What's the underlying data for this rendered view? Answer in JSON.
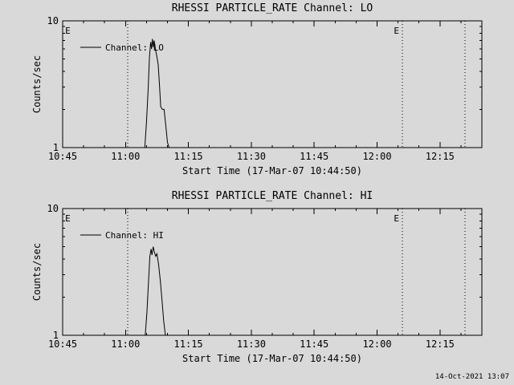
{
  "page": {
    "background_color": "#d9d9d9",
    "foreground_color": "#000000"
  },
  "footer": {
    "render_timestamp": "14-Oct-2021 13:07"
  },
  "chart_data": [
    {
      "type": "line",
      "title": "RHESSI PARTICLE_RATE Channel: LO",
      "xlabel": "Start Time (17-Mar-07 10:44:50)",
      "ylabel": "Counts/sec",
      "yscale": "log",
      "ylim": [
        1,
        10
      ],
      "y_ticks": [
        1,
        10
      ],
      "grid": false,
      "legend_position": "upper-left",
      "x_unit": "minutes since 10:45",
      "x_range": [
        0,
        100
      ],
      "x_major": 15,
      "x_minor": 5,
      "x_ticks": [
        {
          "t": 0,
          "label": "10:45"
        },
        {
          "t": 15,
          "label": "11:00"
        },
        {
          "t": 30,
          "label": "11:15"
        },
        {
          "t": 45,
          "label": "11:30"
        },
        {
          "t": 60,
          "label": "11:45"
        },
        {
          "t": 75,
          "label": "12:00"
        },
        {
          "t": 90,
          "label": "12:15"
        }
      ],
      "eclipse_lines": [
        15.5,
        81,
        96
      ],
      "eclipse_labels": [
        {
          "t": 0.6,
          "text": "E"
        },
        {
          "t": 79.0,
          "text": "E"
        }
      ],
      "series": [
        {
          "name": "Channel: LO",
          "x": [
            0,
            19.6,
            20.0,
            20.4,
            20.7,
            21.0,
            21.2,
            21.4,
            21.6,
            21.8,
            22.0,
            22.2,
            22.5,
            22.8,
            23.1,
            23.4,
            23.8,
            24.2,
            24.6,
            25.0,
            25.4,
            100
          ],
          "values": [
            1,
            1,
            1.6,
            2.9,
            5.2,
            6.8,
            6.0,
            7.2,
            6.2,
            7.0,
            6.5,
            5.8,
            5.2,
            4.5,
            3.1,
            2.1,
            2.0,
            2.0,
            1.5,
            1.1,
            1.0,
            1
          ]
        }
      ]
    },
    {
      "type": "line",
      "title": "RHESSI PARTICLE_RATE Channel: HI",
      "xlabel": "Start Time (17-Mar-07 10:44:50)",
      "ylabel": "Counts/sec",
      "yscale": "log",
      "ylim": [
        1,
        10
      ],
      "y_ticks": [
        1,
        10
      ],
      "grid": false,
      "legend_position": "upper-left",
      "x_unit": "minutes since 10:45",
      "x_range": [
        0,
        100
      ],
      "x_major": 15,
      "x_minor": 5,
      "x_ticks": [
        {
          "t": 0,
          "label": "10:45"
        },
        {
          "t": 15,
          "label": "11:00"
        },
        {
          "t": 30,
          "label": "11:15"
        },
        {
          "t": 45,
          "label": "11:30"
        },
        {
          "t": 60,
          "label": "11:45"
        },
        {
          "t": 75,
          "label": "12:00"
        },
        {
          "t": 90,
          "label": "12:15"
        }
      ],
      "eclipse_lines": [
        15.5,
        81,
        96
      ],
      "eclipse_labels": [
        {
          "t": 0.6,
          "text": "E"
        },
        {
          "t": 79.0,
          "text": "E"
        }
      ],
      "series": [
        {
          "name": "Channel: HI",
          "x": [
            0,
            19.7,
            20.1,
            20.5,
            20.8,
            21.1,
            21.3,
            21.6,
            21.9,
            22.2,
            22.5,
            22.9,
            23.3,
            23.7,
            24.1,
            24.5,
            100
          ],
          "values": [
            1,
            1,
            1.5,
            2.7,
            4.2,
            4.8,
            4.3,
            5.0,
            4.5,
            4.2,
            4.4,
            3.6,
            2.7,
            1.9,
            1.3,
            1.0,
            1
          ]
        }
      ]
    }
  ]
}
